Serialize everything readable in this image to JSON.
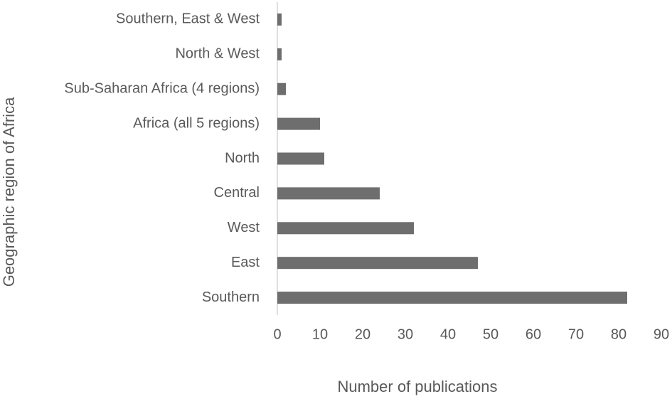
{
  "chart_data": {
    "type": "bar",
    "orientation": "horizontal",
    "x_label": "Number of publications",
    "y_label": "Geographic region of Africa",
    "categories": [
      "Southern, East & West",
      "North & West",
      "Sub-Saharan Africa (4 regions)",
      "Africa (all 5 regions)",
      "North",
      "Central",
      "West",
      "East",
      "Southern"
    ],
    "values": [
      1,
      1,
      2,
      10,
      11,
      24,
      32,
      47,
      82
    ],
    "color": "#6e6e6e",
    "xlim": [
      0,
      90
    ],
    "xticks": [
      0,
      10,
      20,
      30,
      40,
      50,
      60,
      70,
      80,
      90
    ],
    "grid": false
  }
}
